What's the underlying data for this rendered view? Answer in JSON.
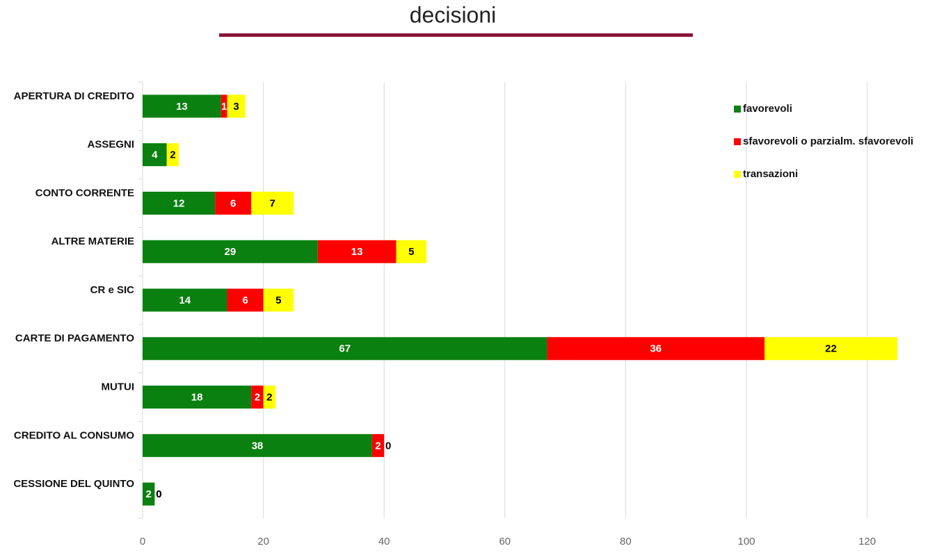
{
  "chart_data": {
    "type": "bar",
    "orientation": "horizontal",
    "stacked": true,
    "title": "decisioni",
    "categories": [
      "APERTURA DI CREDITO",
      "ASSEGNI",
      "CONTO CORRENTE",
      "ALTRE MATERIE",
      "CR e SIC",
      "CARTE DI PAGAMENTO",
      "MUTUI",
      "CREDITO AL CONSUMO",
      "CESSIONE DEL QUINTO"
    ],
    "series": [
      {
        "name": "favorevoli",
        "color": "#0a8010",
        "values": [
          13,
          4,
          12,
          29,
          14,
          67,
          18,
          38,
          2
        ]
      },
      {
        "name": "sfavorevoli o parzialm. sfavorevoli",
        "color": "#ff0000",
        "values": [
          1,
          0,
          6,
          13,
          6,
          36,
          2,
          2,
          0
        ]
      },
      {
        "name": "transazioni",
        "color": "#ffff00",
        "values": [
          3,
          2,
          7,
          5,
          5,
          22,
          2,
          0,
          0
        ]
      }
    ],
    "xlim": [
      0,
      125
    ],
    "xticks": [
      0,
      20,
      40,
      60,
      80,
      100,
      120
    ],
    "grid": true,
    "legend": "top-right"
  }
}
